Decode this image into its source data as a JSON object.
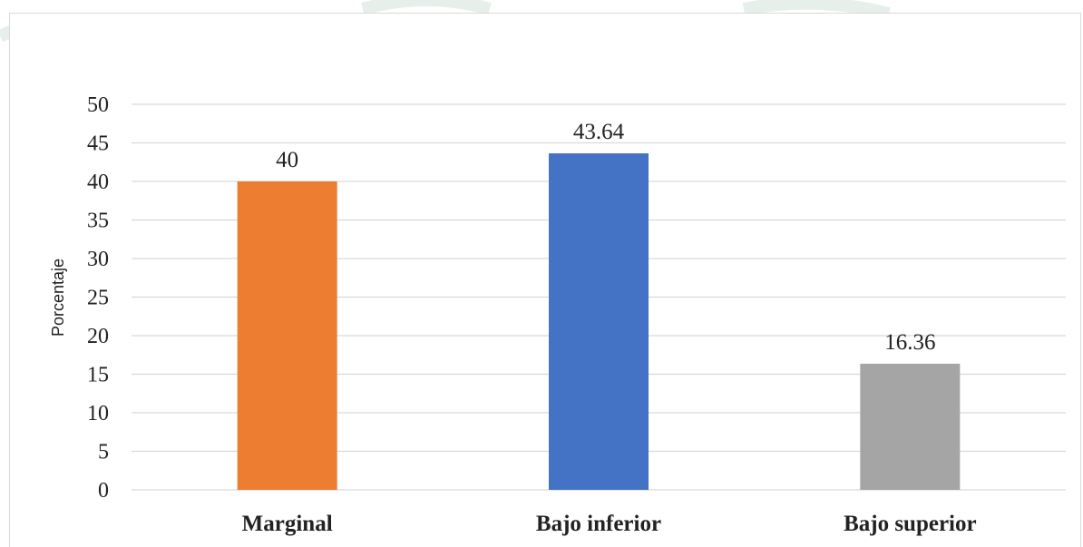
{
  "chart_data": {
    "type": "bar",
    "title": "",
    "xlabel": "",
    "ylabel": "Porcentaje",
    "ylim": [
      0,
      50
    ],
    "yticks": [
      0,
      5,
      10,
      15,
      20,
      25,
      30,
      35,
      40,
      45,
      50
    ],
    "grid": true,
    "legend": "none",
    "categories": [
      "Marginal",
      "Bajo inferior",
      "Bajo superior"
    ],
    "values": [
      40,
      43.64,
      16.36
    ],
    "data_labels": [
      "40",
      "43.64",
      "16.36"
    ],
    "colors": [
      "#ED7D31",
      "#4472C4",
      "#A5A5A5"
    ]
  }
}
